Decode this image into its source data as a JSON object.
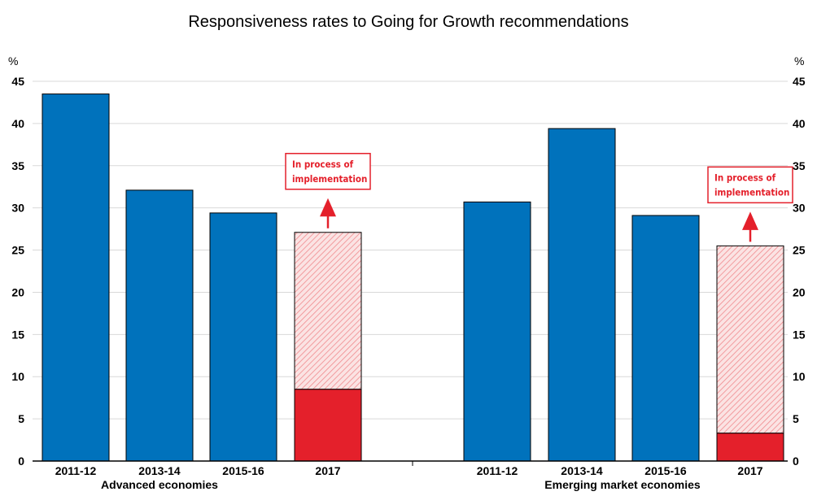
{
  "chart_data": {
    "type": "bar",
    "title": "Responsiveness rates to Going for Growth recommendations",
    "ylabel": "%",
    "ylim": [
      0,
      45
    ],
    "yticks": [
      0,
      5,
      10,
      15,
      20,
      25,
      30,
      35,
      40,
      45
    ],
    "grid": true,
    "colors": {
      "bar": "#0072bc",
      "implemented": "#e4202b",
      "in_process_hatch": "#e4202b"
    },
    "groups": [
      {
        "name": "Advanced economies",
        "categories": [
          "2011-12",
          "2013-14",
          "2015-16",
          "2017"
        ],
        "values": [
          43.5,
          32.1,
          29.4,
          8.5
        ],
        "in_process_total_2017": 27.1,
        "annotation": "In process of implementation"
      },
      {
        "name": "Emerging market economies",
        "categories": [
          "2011-12",
          "2013-14",
          "2015-16",
          "2017"
        ],
        "values": [
          30.7,
          39.4,
          29.1,
          3.3
        ],
        "in_process_total_2017": 25.5,
        "annotation": "In process of implementation"
      }
    ]
  }
}
